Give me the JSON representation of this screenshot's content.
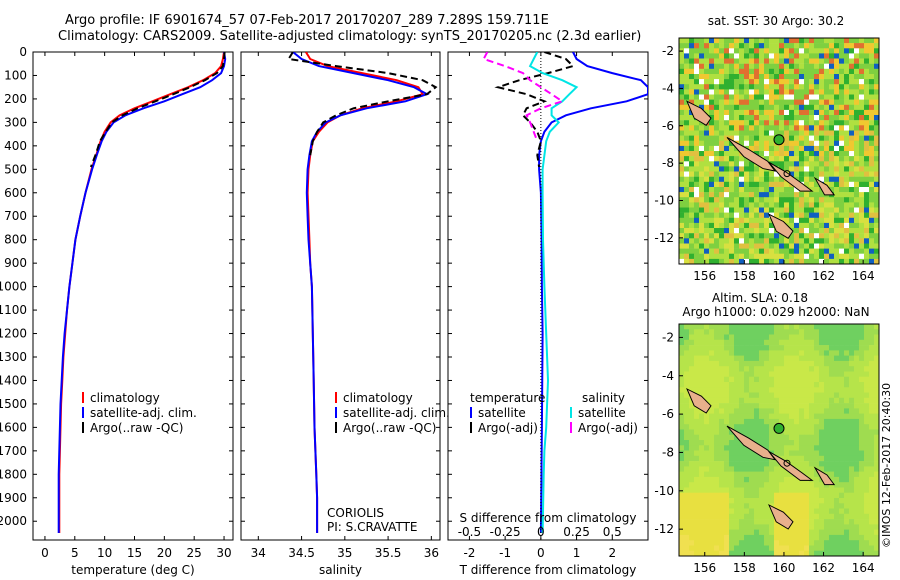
{
  "header": {
    "line1": "Argo profile: IF 6901674_57 07-Feb-2017 20170207_289 7.289S 159.711E",
    "line2": "Climatology: CARS2009. Satellite-adjusted climatology: synTS_20170205.nc (2.3d earlier)"
  },
  "colors": {
    "climatology": "#ff0000",
    "satellite": "#0000ff",
    "argo": "#000000",
    "salinity_sat": "#00e5e5",
    "salinity_argo": "#ff00ff"
  },
  "depth_axis": {
    "ticks": [
      0,
      100,
      200,
      300,
      400,
      500,
      600,
      700,
      800,
      900,
      1000,
      1100,
      1200,
      1300,
      1400,
      1500,
      1600,
      1700,
      1800,
      1900,
      2000
    ],
    "range": [
      0,
      2080
    ]
  },
  "temperature_panel": {
    "xlabel": "temperature (deg C)",
    "xticks": [
      0,
      5,
      10,
      15,
      20,
      25,
      30
    ],
    "xlim": [
      -2,
      31.5
    ],
    "legend": [
      "climatology",
      "satellite-adj. clim.",
      "Argo(..raw -QC)"
    ]
  },
  "salinity_panel": {
    "xlabel": "salinity",
    "xticks": [
      "34",
      "34.5",
      "35",
      "35.5",
      "36"
    ],
    "xlim": [
      33.8,
      36.1
    ],
    "legend": [
      "climatology",
      "satellite-adj. clim.",
      "Argo(..raw -QC)"
    ],
    "note1": "CORIOLIS",
    "note2": "PI: S.CRAVATTE"
  },
  "difference_panel": {
    "xlabel": "T difference from climatology",
    "toplabel": "S difference from climatology",
    "t_ticks": [
      "-2",
      "-1",
      "0",
      "1",
      "2"
    ],
    "s_ticks": [
      "-0.5",
      "-0.25",
      "0",
      "0.25",
      "0.5"
    ],
    "xlim": [
      -2.6,
      3.0
    ],
    "legend_temp_title": "temperature",
    "legend_sal_title": "salinity",
    "legend_temp": [
      "satellite",
      "Argo(-adj)"
    ],
    "legend_sal": [
      "satellite",
      "Argo(-adj)"
    ]
  },
  "map_sst": {
    "title": "sat. SST: 30 Argo: 30.2",
    "xticks": [
      "156",
      "158",
      "160",
      "162",
      "164"
    ],
    "yticks": [
      "-2",
      "-4",
      "-6",
      "-8",
      "-10",
      "-12"
    ]
  },
  "map_sla": {
    "title1": "Altim. SLA: 0.18",
    "title2": "Argo h1000: 0.029 h2000: NaN",
    "xticks": [
      "156",
      "158",
      "160",
      "162",
      "164"
    ],
    "yticks": [
      "-2",
      "-4",
      "-6",
      "-8",
      "-10",
      "-12"
    ]
  },
  "footer": {
    "credit": "©IMOS 12-Feb-2017 20:40:30"
  },
  "chart_data": [
    {
      "type": "line",
      "title": "",
      "xlabel": "temperature (deg C)",
      "ylabel": "",
      "xlim": [
        -2,
        31.5
      ],
      "ylim": [
        2080,
        0
      ],
      "series": [
        {
          "name": "climatology",
          "x": [
            30,
            29.8,
            29.5,
            28.5,
            26.5,
            24,
            21,
            18,
            15,
            12.5,
            11,
            10,
            9.3,
            8.7,
            7.8,
            6.8,
            5.9,
            5.1,
            4.6,
            4.1,
            3.7,
            3.4,
            3.1,
            2.9,
            2.7,
            2.6,
            2.5,
            2.4,
            2.4
          ],
          "y": [
            0,
            30,
            60,
            90,
            120,
            150,
            180,
            210,
            240,
            270,
            300,
            340,
            380,
            430,
            500,
            600,
            700,
            800,
            900,
            1000,
            1100,
            1200,
            1300,
            1400,
            1500,
            1600,
            1700,
            1800,
            2050
          ]
        },
        {
          "name": "satellite-adj. clim.",
          "x": [
            30,
            30.2,
            30,
            29.5,
            28,
            26,
            23,
            20,
            16.5,
            13.5,
            11.5,
            10.3,
            9.5,
            8.8,
            7.9,
            6.8,
            5.9,
            5.1,
            4.6,
            4.1,
            3.7,
            3.3,
            3.0,
            2.8,
            2.6,
            2.5,
            2.4,
            2.3,
            2.3
          ],
          "y": [
            0,
            30,
            60,
            90,
            120,
            150,
            180,
            210,
            240,
            270,
            300,
            340,
            380,
            430,
            500,
            600,
            700,
            800,
            900,
            1000,
            1100,
            1200,
            1300,
            1400,
            1500,
            1600,
            1700,
            1800,
            2050
          ]
        },
        {
          "name": "Argo(..raw -QC)",
          "x": [
            30.1,
            30,
            29.8,
            28.8,
            26.8,
            24.3,
            21.5,
            18.5,
            15.5,
            13,
            11.2,
            10.2,
            9.2,
            8.6,
            7.7
          ],
          "y": [
            0,
            30,
            60,
            90,
            120,
            150,
            180,
            210,
            240,
            270,
            300,
            340,
            380,
            430,
            490
          ]
        }
      ]
    },
    {
      "type": "line",
      "title": "",
      "xlabel": "salinity",
      "ylabel": "",
      "xlim": [
        33.8,
        36.1
      ],
      "ylim": [
        2080,
        0
      ],
      "series": [
        {
          "name": "climatology",
          "x": [
            34.55,
            34.6,
            34.8,
            35.2,
            35.6,
            35.85,
            35.9,
            35.6,
            35.2,
            34.95,
            34.8,
            34.7,
            34.63,
            34.6,
            34.58,
            34.57,
            34.58,
            34.59,
            34.6,
            34.62,
            34.63,
            34.64,
            34.65,
            34.66,
            34.67,
            34.68,
            34.68
          ],
          "y": [
            0,
            30,
            60,
            90,
            120,
            150,
            180,
            210,
            240,
            270,
            300,
            340,
            380,
            440,
            500,
            600,
            700,
            800,
            900,
            1000,
            1200,
            1400,
            1600,
            1700,
            1800,
            1900,
            2050
          ]
        },
        {
          "name": "satellite-adj. clim.",
          "x": [
            34.4,
            34.5,
            34.7,
            35.1,
            35.5,
            35.8,
            35.95,
            35.7,
            35.25,
            34.95,
            34.78,
            34.68,
            34.62,
            34.59,
            34.57,
            34.56,
            34.57,
            34.58,
            34.6,
            34.62,
            34.63,
            34.64,
            34.65,
            34.66,
            34.67,
            34.68,
            34.68
          ],
          "y": [
            0,
            30,
            60,
            90,
            120,
            150,
            180,
            210,
            240,
            270,
            300,
            340,
            380,
            440,
            500,
            600,
            700,
            800,
            900,
            1000,
            1200,
            1400,
            1600,
            1700,
            1800,
            1900,
            2050
          ]
        },
        {
          "name": "Argo(..raw -QC)",
          "x": [
            34.4,
            34.35,
            34.9,
            35.5,
            35.9,
            36.05,
            35.95,
            35.5,
            35.1,
            34.9,
            34.75,
            34.68,
            34.63,
            34.6
          ],
          "y": [
            0,
            30,
            60,
            90,
            120,
            150,
            180,
            210,
            240,
            270,
            300,
            340,
            380,
            440
          ]
        }
      ]
    },
    {
      "type": "line",
      "title": "",
      "xlabel": "T difference from climatology",
      "ylabel": "",
      "xlim": [
        -2.6,
        3.0
      ],
      "ylim": [
        2080,
        0
      ],
      "series": [
        {
          "name": "temperature satellite",
          "x": [
            0.9,
            1.0,
            1.3,
            2.0,
            2.8,
            3.0,
            3.0,
            2.4,
            1.4,
            0.7,
            0.3,
            0.1,
            0.0,
            -0.05,
            -0.05,
            0.0,
            0.02,
            0.03,
            0.05,
            0.03,
            0.0
          ],
          "y": [
            0,
            30,
            60,
            90,
            120,
            150,
            180,
            210,
            240,
            270,
            300,
            340,
            380,
            440,
            500,
            600,
            800,
            1000,
            1200,
            1600,
            2050
          ]
        },
        {
          "name": "temperature Argo(-adj)",
          "x": [
            0.1,
            0.7,
            0.9,
            0.2,
            -0.6,
            -1.2,
            -0.4,
            0.1,
            -0.4,
            -0.5,
            -0.3,
            -0.1,
            0.0,
            -0.1,
            -0.05
          ],
          "y": [
            0,
            30,
            60,
            90,
            120,
            150,
            180,
            210,
            240,
            270,
            300,
            340,
            380,
            440,
            490
          ]
        },
        {
          "name": "salinity satellite",
          "x": [
            -0.1,
            -0.2,
            -0.3,
            0.05,
            0.6,
            1.0,
            0.8,
            0.6,
            0.3,
            0.3,
            0.5,
            0.25,
            0.15,
            0.1,
            0.05,
            0.05,
            0.06,
            0.1,
            0.2,
            0.15,
            0.1,
            0.08,
            0.05
          ],
          "y": [
            0,
            30,
            60,
            90,
            120,
            150,
            180,
            210,
            240,
            270,
            300,
            340,
            380,
            440,
            500,
            600,
            800,
            1000,
            1400,
            1600,
            1700,
            1800,
            2050
          ]
        },
        {
          "name": "salinity Argo(-adj)",
          "x": [
            -1.5,
            -1.6,
            -1.0,
            -0.5,
            -0.3,
            0.0,
            0.3,
            0.6,
            0.0,
            -0.4,
            -0.3,
            -0.2,
            -0.1
          ],
          "y": [
            0,
            30,
            60,
            90,
            120,
            150,
            180,
            210,
            240,
            270,
            300,
            340,
            380
          ]
        }
      ]
    }
  ]
}
